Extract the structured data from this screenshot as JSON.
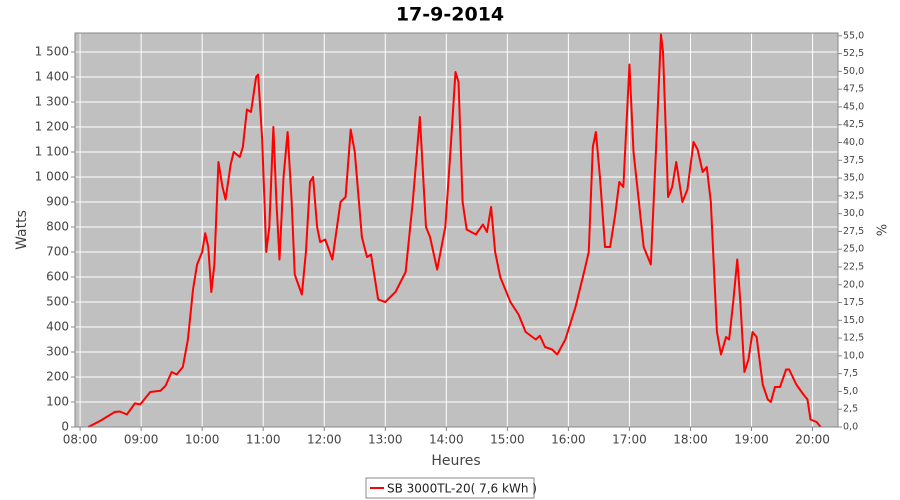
{
  "chart_data": {
    "type": "line",
    "title": "17-9-2014",
    "x_label": "Heures",
    "y_label": "Watts",
    "y2_label": "%",
    "x": [
      "08:08",
      "08:20",
      "08:34",
      "08:39",
      "08:46",
      "08:54",
      "08:59",
      "09:09",
      "09:19",
      "09:24",
      "09:30",
      "09:35",
      "09:41",
      "09:46",
      "09:51",
      "09:55",
      "10:00",
      "10:03",
      "10:06",
      "10:09",
      "10:12",
      "10:16",
      "10:20",
      "10:23",
      "10:28",
      "10:31",
      "10:37",
      "10:40",
      "10:44",
      "10:48",
      "10:53",
      "10:55",
      "10:59",
      "11:03",
      "11:06",
      "11:10",
      "11:13",
      "11:16",
      "11:20",
      "11:24",
      "11:28",
      "11:31",
      "11:38",
      "11:42",
      "11:46",
      "11:49",
      "11:53",
      "11:56",
      "12:01",
      "12:08",
      "12:16",
      "12:21",
      "12:26",
      "12:30",
      "12:37",
      "12:42",
      "12:46",
      "12:53",
      "13:00",
      "13:10",
      "13:20",
      "13:27",
      "13:34",
      "13:40",
      "13:44",
      "13:51",
      "13:59",
      "14:04",
      "14:09",
      "14:12",
      "14:16",
      "14:20",
      "14:29",
      "14:36",
      "14:40",
      "14:44",
      "14:48",
      "14:53",
      "15:03",
      "15:11",
      "15:18",
      "15:28",
      "15:32",
      "15:37",
      "15:44",
      "15:49",
      "15:57",
      "16:07",
      "16:16",
      "16:20",
      "16:24",
      "16:27",
      "16:31",
      "16:36",
      "16:41",
      "16:46",
      "16:50",
      "16:54",
      "17:00",
      "17:04",
      "17:08",
      "17:14",
      "17:21",
      "17:26",
      "17:31",
      "17:33",
      "17:38",
      "17:42",
      "17:46",
      "17:52",
      "17:57",
      "18:03",
      "18:07",
      "18:12",
      "18:16",
      "18:20",
      "18:26",
      "18:30",
      "18:35",
      "18:38",
      "18:42",
      "18:46",
      "18:49",
      "18:53",
      "18:57",
      "19:01",
      "19:05",
      "19:11",
      "19:16",
      "19:19",
      "19:23",
      "19:28",
      "19:34",
      "19:37",
      "19:44",
      "19:51",
      "19:55",
      "19:58",
      "20:04",
      "20:08"
    ],
    "series": [
      {
        "name": "SB 3000TL-20( 7,6 kWh )",
        "color": "#ff0000",
        "values": [
          0,
          25,
          60,
          62,
          50,
          95,
          90,
          140,
          145,
          165,
          220,
          210,
          240,
          350,
          550,
          650,
          700,
          775,
          720,
          540,
          650,
          1060,
          960,
          910,
          1050,
          1100,
          1080,
          1120,
          1270,
          1260,
          1400,
          1410,
          1150,
          700,
          800,
          1200,
          900,
          670,
          1000,
          1180,
          900,
          610,
          530,
          700,
          980,
          1000,
          800,
          740,
          750,
          670,
          900,
          920,
          1190,
          1100,
          760,
          680,
          690,
          510,
          500,
          540,
          620,
          900,
          1240,
          800,
          760,
          630,
          800,
          1100,
          1420,
          1380,
          900,
          790,
          770,
          810,
          780,
          880,
          700,
          600,
          500,
          450,
          380,
          350,
          365,
          320,
          310,
          290,
          350,
          480,
          630,
          700,
          1120,
          1180,
          1000,
          720,
          720,
          850,
          980,
          960,
          1450,
          1100,
          950,
          720,
          650,
          1100,
          1570,
          1500,
          920,
          960,
          1060,
          900,
          950,
          1140,
          1110,
          1020,
          1040,
          900,
          380,
          290,
          360,
          350,
          500,
          670,
          500,
          220,
          270,
          380,
          360,
          170,
          110,
          100,
          160,
          160,
          230,
          230,
          170,
          130,
          110,
          30,
          20,
          0
        ]
      }
    ],
    "xlim": [
      "07:55",
      "20:25"
    ],
    "xticks": [
      "08:00",
      "09:00",
      "10:00",
      "11:00",
      "12:00",
      "13:00",
      "14:00",
      "15:00",
      "16:00",
      "17:00",
      "18:00",
      "19:00",
      "20:00"
    ],
    "ylim": [
      0,
      1576
    ],
    "yticks": [
      0,
      100,
      200,
      300,
      400,
      500,
      600,
      700,
      800,
      900,
      {
        "value": 1000,
        "label": "1 000"
      },
      {
        "value": 1100,
        "label": "1 100"
      },
      {
        "value": 1200,
        "label": "1 200"
      },
      {
        "value": 1300,
        "label": "1 300"
      },
      {
        "value": 1400,
        "label": "1 400"
      },
      {
        "value": 1500,
        "label": "1 500"
      }
    ],
    "y2lim": [
      0,
      55.4
    ],
    "y2ticks": [
      {
        "value": 0,
        "label": "0,0"
      },
      {
        "value": 2.5,
        "label": "2,5"
      },
      {
        "value": 5,
        "label": "5,0"
      },
      {
        "value": 7.5,
        "label": "7,5"
      },
      {
        "value": 10,
        "label": "10,0"
      },
      {
        "value": 12.5,
        "label": "12,5"
      },
      {
        "value": 15,
        "label": "15,0"
      },
      {
        "value": 17.5,
        "label": "17,5"
      },
      {
        "value": 20,
        "label": "20,0"
      },
      {
        "value": 22.5,
        "label": "22,5"
      },
      {
        "value": 25,
        "label": "25,0"
      },
      {
        "value": 27.5,
        "label": "27,5"
      },
      {
        "value": 30,
        "label": "30,0"
      },
      {
        "value": 32.5,
        "label": "32,5"
      },
      {
        "value": 35,
        "label": "35,0"
      },
      {
        "value": 37.5,
        "label": "37,5"
      },
      {
        "value": 40,
        "label": "40,0"
      },
      {
        "value": 42.5,
        "label": "42,5"
      },
      {
        "value": 45,
        "label": "45,0"
      },
      {
        "value": 47.5,
        "label": "47,5"
      },
      {
        "value": 50,
        "label": "50,0"
      },
      {
        "value": 52.5,
        "label": "52,5"
      },
      {
        "value": 55,
        "label": "55,0"
      }
    ],
    "grid": true
  }
}
